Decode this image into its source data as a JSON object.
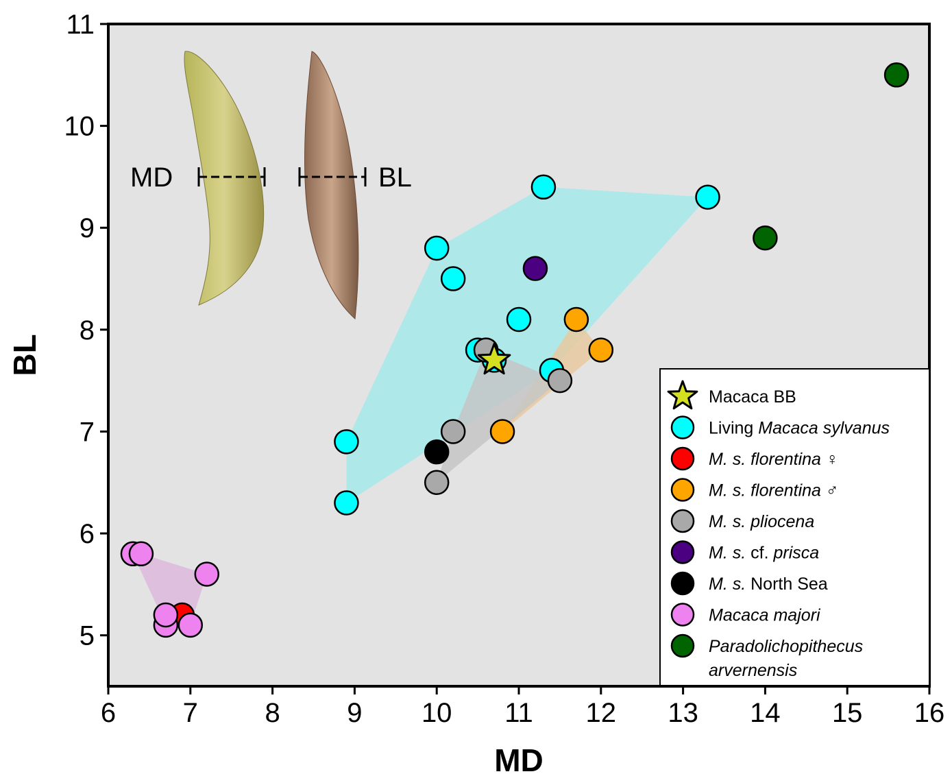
{
  "chart_data": {
    "type": "scatter",
    "xlabel": "MD",
    "ylabel": "BL",
    "xlim": [
      6,
      16
    ],
    "ylim": [
      4.5,
      11
    ],
    "x_ticks": [
      "6",
      "7",
      "8",
      "9",
      "10",
      "11",
      "12",
      "13",
      "14",
      "15",
      "16"
    ],
    "y_ticks": [
      "5",
      "6",
      "7",
      "8",
      "9",
      "10",
      "11"
    ],
    "background": "#e3e3e3",
    "legend_position": "bottom-right",
    "inset_labels": {
      "md": "MD",
      "bl": "BL"
    },
    "series": [
      {
        "key": "bb",
        "name": "Macaca BB",
        "legend": [
          {
            "text": "Macaca BB",
            "italic": false
          }
        ],
        "marker": "star",
        "color": "#d4e020",
        "points": [
          [
            10.7,
            7.7
          ]
        ]
      },
      {
        "key": "living",
        "name": "Living Macaca sylvanus",
        "legend": [
          {
            "text": "Living ",
            "italic": false
          },
          {
            "text": "Macaca sylvanus",
            "italic": true
          }
        ],
        "marker": "circle",
        "color": "#00ffff",
        "hull": "#a6e9ea",
        "points": [
          [
            8.9,
            6.3
          ],
          [
            8.9,
            6.9
          ],
          [
            10.0,
            8.8
          ],
          [
            10.2,
            8.5
          ],
          [
            10.5,
            7.8
          ],
          [
            10.6,
            7.8
          ],
          [
            10.7,
            7.7
          ],
          [
            11.0,
            8.1
          ],
          [
            11.3,
            9.4
          ],
          [
            11.4,
            7.6
          ],
          [
            13.3,
            9.3
          ]
        ]
      },
      {
        "key": "flor_f",
        "name": "M. s. florentina ♀",
        "legend": [
          {
            "text": "M. s. florentina ♀",
            "italic": true
          }
        ],
        "marker": "circle",
        "color": "#ff0000",
        "points": [
          [
            6.9,
            5.2
          ]
        ]
      },
      {
        "key": "flor_m",
        "name": "M. s. florentina ♂",
        "legend": [
          {
            "text": "M. s. florentina ♂",
            "italic": true
          }
        ],
        "marker": "circle",
        "color": "#ffa500",
        "hull": "#e9c9a0",
        "points": [
          [
            10.8,
            7.0
          ],
          [
            11.7,
            8.1
          ],
          [
            12.0,
            7.8
          ]
        ]
      },
      {
        "key": "pliocena",
        "name": "M. s. pliocena",
        "legend": [
          {
            "text": "M. s. pliocena",
            "italic": true
          }
        ],
        "marker": "circle",
        "color": "#a9a9a9",
        "hull": "#c6c6c6",
        "points": [
          [
            10.0,
            6.5
          ],
          [
            10.2,
            7.0
          ],
          [
            10.6,
            7.8
          ],
          [
            11.5,
            7.5
          ]
        ]
      },
      {
        "key": "prisca",
        "name": "M. s. cf. prisca",
        "legend": [
          {
            "text": "M. s.",
            "italic": true
          },
          {
            "text": " cf. ",
            "italic": false
          },
          {
            "text": "prisca",
            "italic": true
          }
        ],
        "marker": "circle",
        "color": "#4b0082",
        "points": [
          [
            11.2,
            8.6
          ]
        ]
      },
      {
        "key": "northsea",
        "name": "M. s. North Sea",
        "legend": [
          {
            "text": "M. s.",
            "italic": true
          },
          {
            "text": " North Sea",
            "italic": false
          }
        ],
        "marker": "circle",
        "color": "#000000",
        "points": [
          [
            10.0,
            6.8
          ]
        ]
      },
      {
        "key": "majori",
        "name": "Macaca majori",
        "legend": [
          {
            "text": "Macaca majori",
            "italic": true
          }
        ],
        "marker": "circle",
        "color": "#ee82ee",
        "hull": "#ddbadd",
        "points": [
          [
            6.3,
            5.8
          ],
          [
            6.4,
            5.8
          ],
          [
            6.7,
            5.1
          ],
          [
            6.7,
            5.2
          ],
          [
            7.0,
            5.1
          ],
          [
            7.2,
            5.6
          ]
        ]
      },
      {
        "key": "paradolichopithecus",
        "name": "Paradolichopithecus arvernensis",
        "legend": [
          {
            "text": "Paradolichopithecus",
            "italic": true
          }
        ],
        "legend2": [
          {
            "text": "arvernensis",
            "italic": true
          }
        ],
        "marker": "circle",
        "color": "#006400",
        "points": [
          [
            14.0,
            8.9
          ],
          [
            15.6,
            10.5
          ]
        ]
      }
    ]
  }
}
